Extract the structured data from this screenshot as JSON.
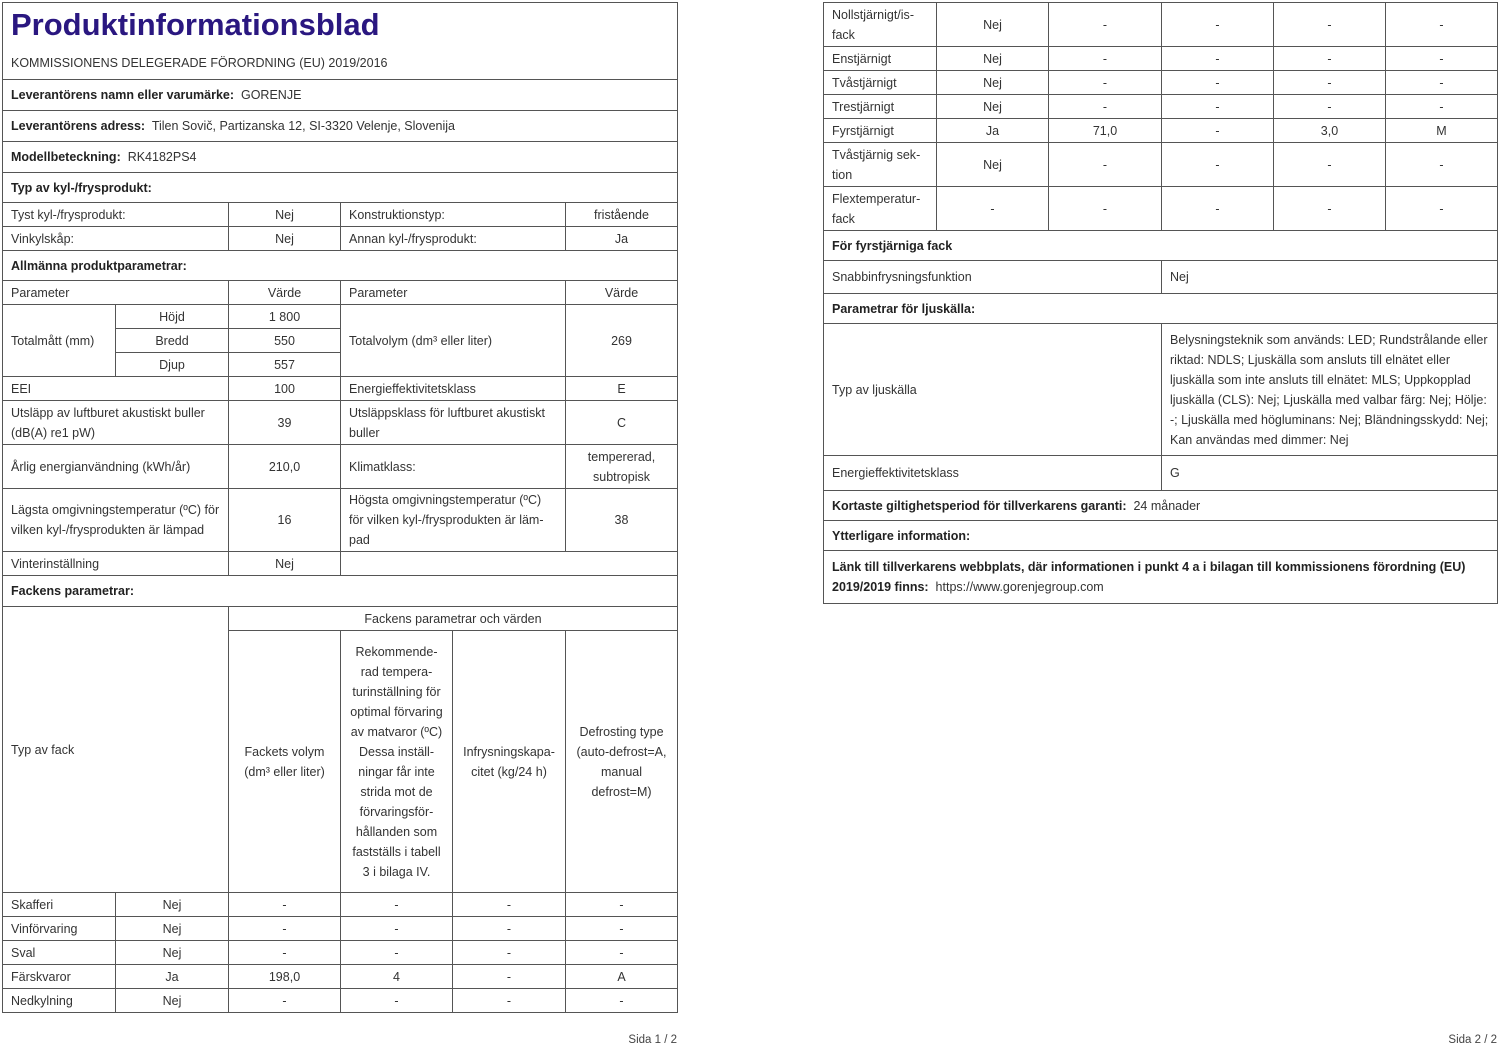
{
  "page1": {
    "title": "Produktinformationsblad",
    "regulation": "KOMMISSIONENS DELEGERADE FÖRORDNING (EU) 2019/2016",
    "supplier_label": "Leverantörens namn eller varumärke:",
    "supplier": "GORENJE",
    "address_label": "Leverantörens adress:",
    "address": "Tilen Sovič, Partizanska 12, SI-3320 Velenje, Slovenija",
    "model_label": "Modellbeteckning:",
    "model": "RK4182PS4",
    "type_heading": "Typ av kyl-/frysprodukt:",
    "type_rows": [
      [
        "Tyst kyl-/frysprodukt:",
        "Nej",
        "Konstruktionstyp:",
        "fristående"
      ],
      [
        "Vinkylskåp:",
        "Nej",
        "Annan kyl-/frysprodukt:",
        "Ja"
      ]
    ],
    "general_heading": "Allmänna produktparametrar:",
    "param_header": [
      "Parameter",
      "Värde",
      "Parameter",
      "Värde"
    ],
    "dims_label": "Totalmått (mm)",
    "dims": [
      [
        "Höjd",
        "1 800"
      ],
      [
        "Bredd",
        "550"
      ],
      [
        "Djup",
        "557"
      ]
    ],
    "volume_label": "Totalvolym (dm³ eller liter)",
    "volume": "269",
    "params": [
      [
        "EEI",
        "100",
        "Energieffektivitetsklass",
        "E"
      ],
      [
        "Utsläpp av luftburet akustiskt buller (dB(A) re1 pW)",
        "39",
        "Utsläppsklass för luftburet akustiskt buller",
        "C"
      ],
      [
        "Årlig energianvändning (kWh/år)",
        "210,0",
        "Klimatklass:",
        "tempererad, subtropisk"
      ],
      [
        "Lägsta omgivningstemperatur (ºC) för vilken kyl-/frysprodukten är läm­pad",
        "16",
        "Högsta omgivningstemperatur (ºC) för vilken kyl-/frysprodukten är läm­pad",
        "38"
      ]
    ],
    "winter_label": "Vinterinställning",
    "winter": "Nej",
    "compartment_heading": "Fackens parametrar:",
    "comp_group_header": "Fackens parametrar och värden",
    "comp_headers": [
      "Typ av fack",
      "Fackets volym (dm³ eller liter)",
      "Rekommende­rad tempera­turinställning för optimal förvaring av matvaror (ºC) Dessa inställ­ningar får inte strida mot de förvaringsför­hållanden som fastställs i ta­bell 3 i bilaga IV.",
      "Infrysningskapa­citet (kg/24 h)",
      "Defrosting ty­pe (auto-de­frost=A, manu­al defrost=M)"
    ],
    "compartments": [
      [
        "Skafferi",
        "Nej",
        "-",
        "-",
        "-",
        "-"
      ],
      [
        "Vinförvaring",
        "Nej",
        "-",
        "-",
        "-",
        "-"
      ],
      [
        "Sval",
        "Nej",
        "-",
        "-",
        "-",
        "-"
      ],
      [
        "Färskvaror",
        "Ja",
        "198,0",
        "4",
        "-",
        "A"
      ],
      [
        "Nedkylning",
        "Nej",
        "-",
        "-",
        "-",
        "-"
      ]
    ],
    "footer": "Sida 1 / 2"
  },
  "page2": {
    "compartments": [
      [
        "Nollstjärnigt/is­fack",
        "Nej",
        "-",
        "-",
        "-",
        "-"
      ],
      [
        "Enstjärnigt",
        "Nej",
        "-",
        "-",
        "-",
        "-"
      ],
      [
        "Tvåstjärnigt",
        "Nej",
        "-",
        "-",
        "-",
        "-"
      ],
      [
        "Trestjärnigt",
        "Nej",
        "-",
        "-",
        "-",
        "-"
      ],
      [
        "Fyrstjärnigt",
        "Ja",
        "71,0",
        "-",
        "3,0",
        "M"
      ],
      [
        "Tvåstjärnig sek­tion",
        "Nej",
        "-",
        "-",
        "-",
        "-"
      ],
      [
        "Flextemperatur­fack",
        "-",
        "-",
        "-",
        "-",
        "-"
      ]
    ],
    "four_star_heading": "För fyrstjärniga fack",
    "fast_freeze_label": "Snabbinfrysningsfunktion",
    "fast_freeze": "Nej",
    "light_heading": "Parametrar för ljuskälla:",
    "light_type_label": "Typ av ljuskälla",
    "light_type": "Belysningsteknik som används: LED; Rundstrålande eller riktad: NDLS; Ljuskälla som ansluts till elnätet eller ljuskäl­la som inte ansluts till elnätet: MLS; Uppkopplad ljuskälla (CLS): Nej; Ljuskälla med valbar färg: Nej; Hölje: -; Ljuskälla med högluminans: Nej; Bländningsskydd: Nej; Kan använ­das med dimmer: Nej",
    "light_class_label": "Energieffektivitetsklass",
    "light_class": "G",
    "warranty_label": "Kortaste giltighetsperiod för tillverkarens garanti:",
    "warranty": "24 månader",
    "additional_heading": "Ytterligare information:",
    "link_label": "Länk till tillverkarens webbplats, där informationen i punkt 4 a i bilagan till kommissionens förordning (EU) 2019/2019 finns:",
    "link": "https://www.gorenjegroup.com",
    "footer": "Sida 2 / 2"
  }
}
